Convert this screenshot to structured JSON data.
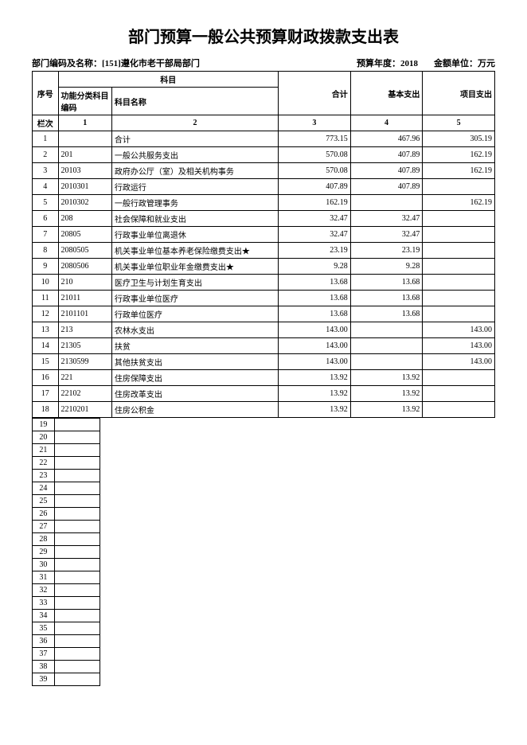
{
  "title": "部门预算一般公共预算财政拨款支出表",
  "meta": {
    "dept_label": "部门编码及名称：",
    "dept_value": "[151]遵化市老干部局部门",
    "year_label": "预算年度：",
    "year_value": "2018",
    "unit_label": "金额单位：",
    "unit_value": "万元"
  },
  "header": {
    "seq": "序号",
    "subject": "科目",
    "code": "功能分类科目编码",
    "name": "科目名称",
    "total": "合计",
    "basic": "基本支出",
    "project": "项目支出"
  },
  "lanci": {
    "label": "栏次",
    "c1": "1",
    "c2": "2",
    "c3": "3",
    "c4": "4",
    "c5": "5"
  },
  "rows": [
    {
      "seq": "1",
      "code": "",
      "name": "合计",
      "total": "773.15",
      "basic": "467.96",
      "project": "305.19"
    },
    {
      "seq": "2",
      "code": "201",
      "name": "一般公共服务支出",
      "total": "570.08",
      "basic": "407.89",
      "project": "162.19"
    },
    {
      "seq": "3",
      "code": "20103",
      "name": "政府办公厅（室）及相关机构事务",
      "total": "570.08",
      "basic": "407.89",
      "project": "162.19"
    },
    {
      "seq": "4",
      "code": "2010301",
      "name": "行政运行",
      "total": "407.89",
      "basic": "407.89",
      "project": ""
    },
    {
      "seq": "5",
      "code": "2010302",
      "name": "一般行政管理事务",
      "total": "162.19",
      "basic": "",
      "project": "162.19"
    },
    {
      "seq": "6",
      "code": "208",
      "name": "社会保障和就业支出",
      "total": "32.47",
      "basic": "32.47",
      "project": ""
    },
    {
      "seq": "7",
      "code": "20805",
      "name": "行政事业单位离退休",
      "total": "32.47",
      "basic": "32.47",
      "project": ""
    },
    {
      "seq": "8",
      "code": "2080505",
      "name": "机关事业单位基本养老保险缴费支出★",
      "total": "23.19",
      "basic": "23.19",
      "project": ""
    },
    {
      "seq": "9",
      "code": "2080506",
      "name": "机关事业单位职业年金缴费支出★",
      "total": "9.28",
      "basic": "9.28",
      "project": ""
    },
    {
      "seq": "10",
      "code": "210",
      "name": "医疗卫生与计划生育支出",
      "total": "13.68",
      "basic": "13.68",
      "project": ""
    },
    {
      "seq": "11",
      "code": "21011",
      "name": "行政事业单位医疗",
      "total": "13.68",
      "basic": "13.68",
      "project": ""
    },
    {
      "seq": "12",
      "code": "2101101",
      "name": "行政单位医疗",
      "total": "13.68",
      "basic": "13.68",
      "project": ""
    },
    {
      "seq": "13",
      "code": "213",
      "name": "农林水支出",
      "total": "143.00",
      "basic": "",
      "project": "143.00"
    },
    {
      "seq": "14",
      "code": "21305",
      "name": "扶贫",
      "total": "143.00",
      "basic": "",
      "project": "143.00"
    },
    {
      "seq": "15",
      "code": "2130599",
      "name": "其他扶贫支出",
      "total": "143.00",
      "basic": "",
      "project": "143.00"
    },
    {
      "seq": "16",
      "code": "221",
      "name": "住房保障支出",
      "total": "13.92",
      "basic": "13.92",
      "project": ""
    },
    {
      "seq": "17",
      "code": "22102",
      "name": "住房改革支出",
      "total": "13.92",
      "basic": "13.92",
      "project": ""
    },
    {
      "seq": "18",
      "code": "2210201",
      "name": "住房公积金",
      "total": "13.92",
      "basic": "13.92",
      "project": ""
    }
  ],
  "empty_rows": [
    "19",
    "20",
    "21",
    "22",
    "23",
    "24",
    "25",
    "26",
    "27",
    "28",
    "29",
    "30",
    "31",
    "32",
    "33",
    "34",
    "35",
    "36",
    "37",
    "38",
    "39"
  ],
  "colors": {
    "background": "#ffffff",
    "text": "#000000",
    "border": "#000000"
  }
}
